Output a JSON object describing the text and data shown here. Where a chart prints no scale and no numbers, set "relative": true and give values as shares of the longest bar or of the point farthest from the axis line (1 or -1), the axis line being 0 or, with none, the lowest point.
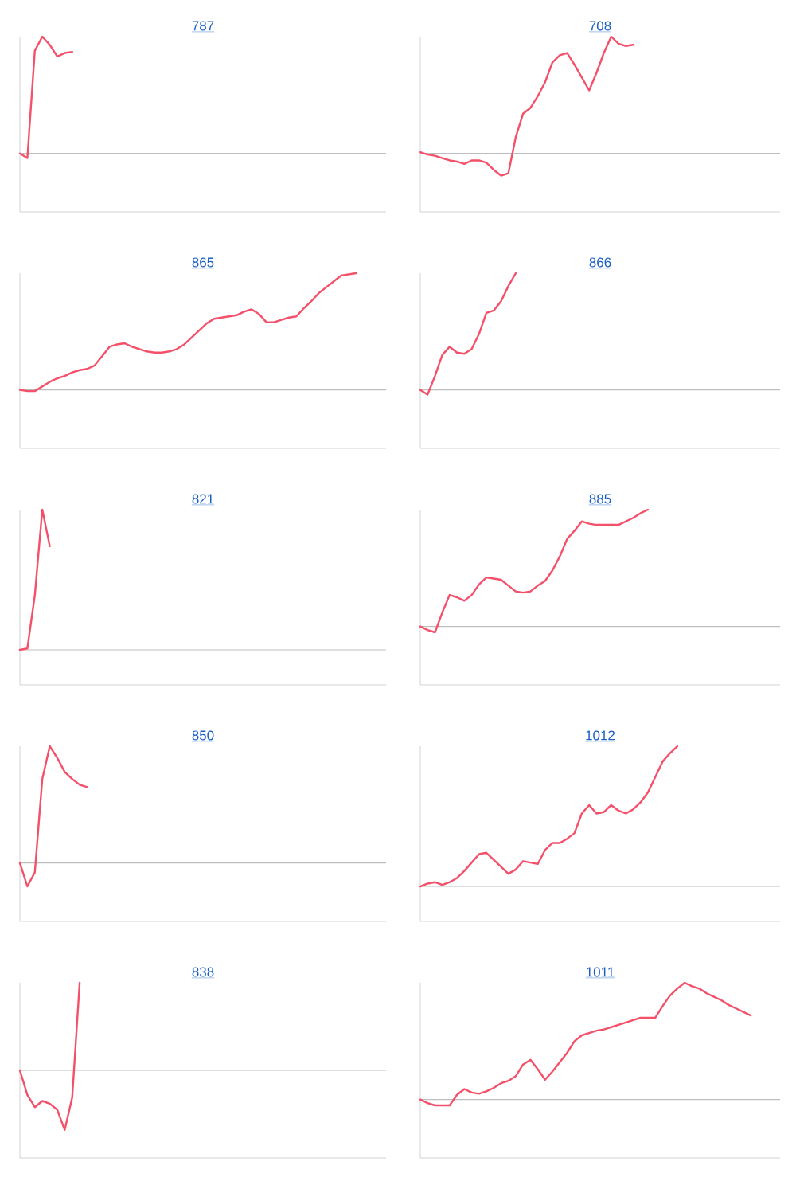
{
  "chart_data": [
    {
      "type": "line",
      "title": "787",
      "relative": true,
      "color": "#f5506a",
      "categories": [
        null,
        null,
        null,
        null,
        null,
        null,
        null,
        null,
        null,
        null,
        null,
        null,
        null,
        null,
        null,
        null,
        null,
        null,
        null,
        null,
        null,
        null,
        null,
        null,
        null,
        null,
        null,
        null,
        null,
        null,
        null,
        null,
        null,
        null,
        null,
        null,
        null,
        null,
        null,
        null,
        null,
        null,
        null,
        null,
        null,
        null,
        null,
        null,
        null,
        null
      ],
      "values": [
        0,
        -0.04,
        0.88,
        1.0,
        0.93,
        0.83,
        0.86,
        0.87,
        null,
        null,
        null,
        null,
        null,
        null,
        null,
        null,
        null,
        null,
        null,
        null,
        null,
        null,
        null,
        null,
        null,
        null,
        null,
        null,
        null,
        null,
        null,
        null,
        null,
        null,
        null,
        null,
        null,
        null,
        null,
        null,
        null,
        null,
        null,
        null,
        null,
        null,
        null,
        null,
        null,
        null
      ]
    },
    {
      "type": "line",
      "title": "708",
      "relative": true,
      "color": "#f5506a",
      "categories": [
        null,
        null,
        null,
        null,
        null,
        null,
        null,
        null,
        null,
        null,
        null,
        null,
        null,
        null,
        null,
        null,
        null,
        null,
        null,
        null,
        null,
        null,
        null,
        null,
        null,
        null,
        null,
        null,
        null,
        null,
        null,
        null,
        null,
        null,
        null,
        null,
        null,
        null,
        null,
        null,
        null,
        null,
        null,
        null,
        null,
        null,
        null,
        null,
        null,
        null
      ],
      "values": [
        0.01,
        -0.01,
        -0.02,
        -0.04,
        -0.06,
        -0.07,
        -0.09,
        -0.06,
        -0.06,
        -0.08,
        -0.14,
        -0.19,
        -0.17,
        0.14,
        0.34,
        0.39,
        0.49,
        0.61,
        0.78,
        0.84,
        0.86,
        0.76,
        0.65,
        0.54,
        0.69,
        0.86,
        1.0,
        0.94,
        0.92,
        0.93,
        null,
        null,
        null,
        null,
        null,
        null,
        null,
        null,
        null,
        null,
        null,
        null,
        null,
        null,
        null,
        null,
        null,
        null,
        null,
        null
      ]
    },
    {
      "type": "line",
      "title": "865",
      "relative": true,
      "color": "#f5506a",
      "categories": [
        null,
        null,
        null,
        null,
        null,
        null,
        null,
        null,
        null,
        null,
        null,
        null,
        null,
        null,
        null,
        null,
        null,
        null,
        null,
        null,
        null,
        null,
        null,
        null,
        null,
        null,
        null,
        null,
        null,
        null,
        null,
        null,
        null,
        null,
        null,
        null,
        null,
        null,
        null,
        null,
        null,
        null,
        null,
        null,
        null,
        null,
        null,
        null,
        null,
        null
      ],
      "values": [
        0,
        -0.01,
        -0.01,
        0.03,
        0.07,
        0.1,
        0.12,
        0.15,
        0.17,
        0.18,
        0.21,
        0.29,
        0.37,
        0.39,
        0.4,
        0.37,
        0.35,
        0.33,
        0.32,
        0.32,
        0.33,
        0.35,
        0.39,
        0.45,
        0.51,
        0.57,
        0.61,
        0.62,
        0.63,
        0.64,
        0.67,
        0.69,
        0.65,
        0.58,
        0.58,
        0.6,
        0.62,
        0.63,
        0.7,
        0.76,
        0.83,
        0.88,
        0.93,
        0.98,
        0.99,
        1.0,
        null,
        null,
        null,
        null
      ]
    },
    {
      "type": "line",
      "title": "866",
      "relative": true,
      "color": "#f5506a",
      "categories": [
        null,
        null,
        null,
        null,
        null,
        null,
        null,
        null,
        null,
        null,
        null,
        null,
        null,
        null,
        null,
        null,
        null,
        null,
        null,
        null,
        null,
        null,
        null,
        null,
        null,
        null,
        null,
        null,
        null,
        null,
        null,
        null,
        null,
        null,
        null,
        null,
        null,
        null,
        null,
        null,
        null,
        null,
        null,
        null,
        null,
        null,
        null,
        null,
        null,
        null
      ],
      "values": [
        0,
        -0.04,
        0.12,
        0.3,
        0.37,
        0.32,
        0.31,
        0.35,
        0.48,
        0.66,
        0.68,
        0.76,
        0.89,
        1.0,
        null,
        null,
        null,
        null,
        null,
        null,
        null,
        null,
        null,
        null,
        null,
        null,
        null,
        null,
        null,
        null,
        null,
        null,
        null,
        null,
        null,
        null,
        null,
        null,
        null,
        null,
        null,
        null,
        null,
        null,
        null,
        null,
        null,
        null,
        null,
        null
      ]
    },
    {
      "type": "line",
      "title": "821",
      "relative": true,
      "color": "#f5506a",
      "categories": [
        null,
        null,
        null,
        null,
        null,
        null,
        null,
        null,
        null,
        null,
        null,
        null,
        null,
        null,
        null,
        null,
        null,
        null,
        null,
        null,
        null,
        null,
        null,
        null,
        null,
        null,
        null,
        null,
        null,
        null,
        null,
        null,
        null,
        null,
        null,
        null,
        null,
        null,
        null,
        null,
        null,
        null,
        null,
        null,
        null,
        null,
        null,
        null,
        null,
        null
      ],
      "values": [
        0,
        0.01,
        0.39,
        1.0,
        0.74,
        null,
        null,
        null,
        null,
        null,
        null,
        null,
        null,
        null,
        null,
        null,
        null,
        null,
        null,
        null,
        null,
        null,
        null,
        null,
        null,
        null,
        null,
        null,
        null,
        null,
        null,
        null,
        null,
        null,
        null,
        null,
        null,
        null,
        null,
        null,
        null,
        null,
        null,
        null,
        null,
        null,
        null,
        null,
        null,
        null
      ]
    },
    {
      "type": "line",
      "title": "885",
      "relative": true,
      "color": "#f5506a",
      "categories": [
        null,
        null,
        null,
        null,
        null,
        null,
        null,
        null,
        null,
        null,
        null,
        null,
        null,
        null,
        null,
        null,
        null,
        null,
        null,
        null,
        null,
        null,
        null,
        null,
        null,
        null,
        null,
        null,
        null,
        null,
        null,
        null,
        null,
        null,
        null,
        null,
        null,
        null,
        null,
        null,
        null,
        null,
        null,
        null,
        null,
        null,
        null,
        null,
        null,
        null
      ],
      "values": [
        0,
        -0.03,
        -0.05,
        0.12,
        0.27,
        0.25,
        0.22,
        0.27,
        0.36,
        0.42,
        0.41,
        0.4,
        0.35,
        0.3,
        0.29,
        0.3,
        0.35,
        0.39,
        0.48,
        0.6,
        0.75,
        0.82,
        0.9,
        0.88,
        0.87,
        0.87,
        0.87,
        0.87,
        0.9,
        0.93,
        0.97,
        1.0,
        null,
        null,
        null,
        null,
        null,
        null,
        null,
        null,
        null,
        null,
        null,
        null,
        null,
        null,
        null,
        null,
        null,
        null
      ]
    },
    {
      "type": "line",
      "title": "850",
      "relative": true,
      "color": "#f5506a",
      "categories": [
        null,
        null,
        null,
        null,
        null,
        null,
        null,
        null,
        null,
        null,
        null,
        null,
        null,
        null,
        null,
        null,
        null,
        null,
        null,
        null,
        null,
        null,
        null,
        null,
        null,
        null,
        null,
        null,
        null,
        null,
        null,
        null,
        null,
        null,
        null,
        null,
        null,
        null,
        null,
        null,
        null,
        null,
        null,
        null,
        null,
        null,
        null,
        null,
        null,
        null
      ],
      "values": [
        0,
        -0.2,
        -0.08,
        0.72,
        1.0,
        0.9,
        0.78,
        0.72,
        0.67,
        0.65,
        null,
        null,
        null,
        null,
        null,
        null,
        null,
        null,
        null,
        null,
        null,
        null,
        null,
        null,
        null,
        null,
        null,
        null,
        null,
        null,
        null,
        null,
        null,
        null,
        null,
        null,
        null,
        null,
        null,
        null,
        null,
        null,
        null,
        null,
        null,
        null,
        null,
        null,
        null,
        null
      ]
    },
    {
      "type": "line",
      "title": "1012",
      "relative": true,
      "color": "#f5506a",
      "categories": [
        null,
        null,
        null,
        null,
        null,
        null,
        null,
        null,
        null,
        null,
        null,
        null,
        null,
        null,
        null,
        null,
        null,
        null,
        null,
        null,
        null,
        null,
        null,
        null,
        null,
        null,
        null,
        null,
        null,
        null,
        null,
        null,
        null,
        null,
        null,
        null,
        null,
        null,
        null,
        null,
        null,
        null,
        null,
        null,
        null,
        null,
        null,
        null,
        null,
        null
      ],
      "values": [
        0,
        0.02,
        0.03,
        0.01,
        0.03,
        0.06,
        0.11,
        0.17,
        0.23,
        0.24,
        0.19,
        0.14,
        0.09,
        0.12,
        0.18,
        0.17,
        0.16,
        0.26,
        0.31,
        0.31,
        0.34,
        0.38,
        0.52,
        0.58,
        0.52,
        0.53,
        0.58,
        0.54,
        0.52,
        0.55,
        0.6,
        0.67,
        0.78,
        0.89,
        0.95,
        1.0,
        null,
        null,
        null,
        null,
        null,
        null,
        null,
        null,
        null,
        null,
        null,
        null,
        null,
        null
      ]
    },
    {
      "type": "line",
      "title": "838",
      "relative": true,
      "color": "#f5506a",
      "categories": [
        null,
        null,
        null,
        null,
        null,
        null,
        null,
        null,
        null,
        null,
        null,
        null,
        null,
        null,
        null,
        null,
        null,
        null,
        null,
        null,
        null,
        null,
        null,
        null,
        null,
        null,
        null,
        null,
        null,
        null,
        null,
        null,
        null,
        null,
        null,
        null,
        null,
        null,
        null,
        null,
        null,
        null,
        null,
        null,
        null,
        null,
        null,
        null,
        null,
        null
      ],
      "values": [
        0,
        -0.28,
        -0.42,
        -0.35,
        -0.38,
        -0.45,
        -0.68,
        -0.31,
        1.0,
        null,
        null,
        null,
        null,
        null,
        null,
        null,
        null,
        null,
        null,
        null,
        null,
        null,
        null,
        null,
        null,
        null,
        null,
        null,
        null,
        null,
        null,
        null,
        null,
        null,
        null,
        null,
        null,
        null,
        null,
        null,
        null,
        null,
        null,
        null,
        null,
        null,
        null,
        null,
        null,
        null
      ]
    },
    {
      "type": "line",
      "title": "1011",
      "relative": true,
      "color": "#f5506a",
      "categories": [
        null,
        null,
        null,
        null,
        null,
        null,
        null,
        null,
        null,
        null,
        null,
        null,
        null,
        null,
        null,
        null,
        null,
        null,
        null,
        null,
        null,
        null,
        null,
        null,
        null,
        null,
        null,
        null,
        null,
        null,
        null,
        null,
        null,
        null,
        null,
        null,
        null,
        null,
        null,
        null,
        null,
        null,
        null,
        null,
        null,
        null,
        null,
        null,
        null,
        null
      ],
      "values": [
        0,
        -0.03,
        -0.05,
        -0.05,
        -0.05,
        0.04,
        0.09,
        0.06,
        0.05,
        0.07,
        0.1,
        0.14,
        0.16,
        0.2,
        0.3,
        0.34,
        0.26,
        0.17,
        0.24,
        0.32,
        0.4,
        0.5,
        0.55,
        0.57,
        0.59,
        0.6,
        0.62,
        0.64,
        0.66,
        0.68,
        0.7,
        0.7,
        0.7,
        0.8,
        0.89,
        0.95,
        1.0,
        0.97,
        0.95,
        0.91,
        0.88,
        0.85,
        0.81,
        0.78,
        0.75,
        0.72,
        null,
        null,
        null,
        null
      ]
    }
  ]
}
